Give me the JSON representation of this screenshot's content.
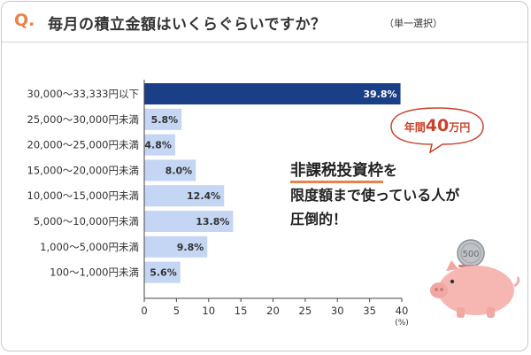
{
  "header": {
    "q_mark": "Q.",
    "question": "毎月の積立金額はいくらぐらいですか？",
    "note": "（単一選択）"
  },
  "bubble": {
    "pre": "年間",
    "num": "40",
    "unit": "万円"
  },
  "callout": {
    "emph": "非課税投資枠",
    "particle": "を",
    "line2": "限度額まで使っている人が",
    "line3": "圧倒的！"
  },
  "coin_label": "500",
  "colors": {
    "highlight_bar": "#1a3f86",
    "bar": "#c4d6f3",
    "accent": "#e8844a",
    "bubble_text": "#c8432b",
    "pig": "#f6b7b3"
  },
  "chart_data": {
    "type": "bar",
    "orientation": "horizontal",
    "categories": [
      "30,000〜33,333円以下",
      "25,000〜30,000円未満",
      "20,000〜25,000円未満",
      "15,000〜20,000円未満",
      "10,000〜15,000円未満",
      "5,000〜10,000円未満",
      "1,000〜5,000円未満",
      "100〜1,000円未満"
    ],
    "values": [
      39.8,
      5.8,
      4.8,
      8.0,
      12.4,
      13.8,
      9.8,
      5.6
    ],
    "value_labels": [
      "39.8%",
      "5.8%",
      "4.8%",
      "8.0%",
      "12.4%",
      "13.8%",
      "9.8%",
      "5.6%"
    ],
    "highlight_index": 0,
    "xlim": [
      0,
      40
    ],
    "xticks": [
      0,
      5,
      10,
      15,
      20,
      25,
      30,
      35,
      40
    ],
    "unit_label": "(%)",
    "grid": false
  }
}
